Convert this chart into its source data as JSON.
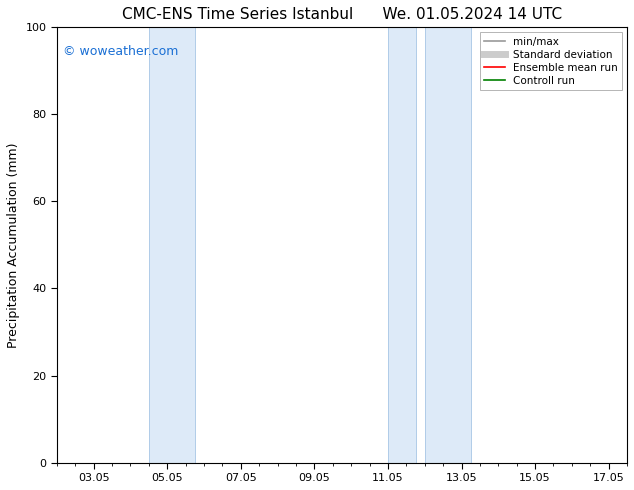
{
  "title_left": "CMC-ENS Time Series Istanbul",
  "title_right": "We. 01.05.2024 14 UTC",
  "ylabel": "Precipitation Accumulation (mm)",
  "ylim": [
    0,
    100
  ],
  "yticks": [
    0,
    20,
    40,
    60,
    80,
    100
  ],
  "x_tick_labels": [
    "03.05",
    "05.05",
    "07.05",
    "09.05",
    "11.05",
    "13.05",
    "15.05",
    "17.05"
  ],
  "x_tick_positions": [
    3,
    5,
    7,
    9,
    11,
    13,
    15,
    17
  ],
  "xlim": [
    2.0,
    17.5
  ],
  "shaded_bands": [
    {
      "x_start": 4.5,
      "x_end": 5.75,
      "color": "#ddeaf8",
      "alpha": 1.0
    },
    {
      "x_start": 11.0,
      "x_end": 11.75,
      "color": "#ddeaf8",
      "alpha": 1.0
    },
    {
      "x_start": 12.0,
      "x_end": 13.25,
      "color": "#ddeaf8",
      "alpha": 1.0
    }
  ],
  "band_border_color": "#b0cce8",
  "legend_entries": [
    {
      "label": "min/max",
      "color": "#999999",
      "linewidth": 1.2,
      "linestyle": "-"
    },
    {
      "label": "Standard deviation",
      "color": "#cccccc",
      "linewidth": 5,
      "linestyle": "-"
    },
    {
      "label": "Ensemble mean run",
      "color": "red",
      "linewidth": 1.2,
      "linestyle": "-"
    },
    {
      "label": "Controll run",
      "color": "green",
      "linewidth": 1.2,
      "linestyle": "-"
    }
  ],
  "watermark_text": "© woweather.com",
  "watermark_color": "#1a6fd4",
  "watermark_fontsize": 9,
  "background_color": "#ffffff",
  "title_fontsize": 11,
  "axis_label_fontsize": 9,
  "tick_fontsize": 8,
  "legend_fontsize": 7.5
}
